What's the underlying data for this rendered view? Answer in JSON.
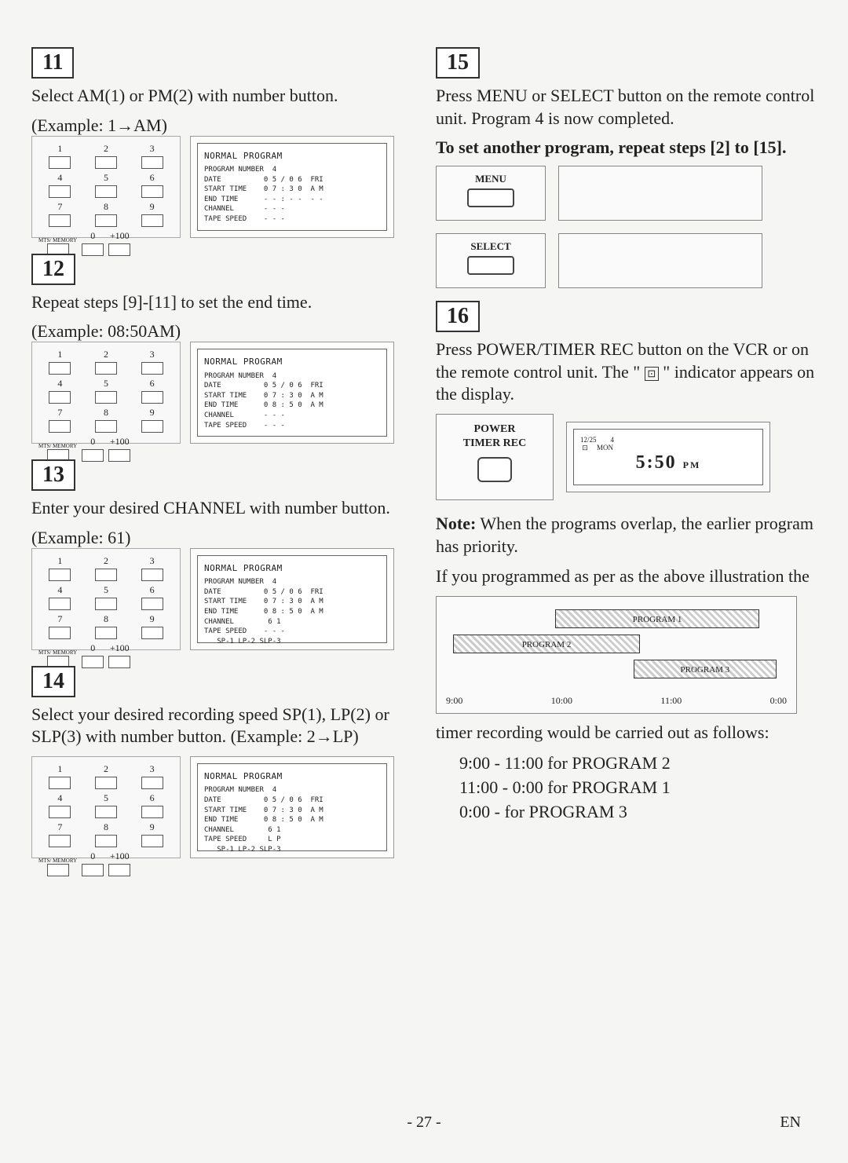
{
  "steps": {
    "s11": {
      "num": "11",
      "text": "Select AM(1) or PM(2) with number button.",
      "example": "(Example: 1→AM)"
    },
    "s12": {
      "num": "12",
      "text": "Repeat steps [9]-[11] to set the end time.",
      "example": "(Example: 08:50AM)"
    },
    "s13": {
      "num": "13",
      "text": "Enter your desired CHANNEL with number button.",
      "example": "(Example: 61)"
    },
    "s14": {
      "num": "14",
      "text": "Select your desired recording speed SP(1), LP(2) or SLP(3) with number button. (Example: 2→LP)"
    },
    "s15": {
      "num": "15",
      "text": "Press MENU or SELECT button on the remote control unit. Program 4 is now completed.",
      "bold": "To set another program, repeat steps [2] to [15]."
    },
    "s16": {
      "num": "16",
      "text_before": "Press POWER/TIMER REC button on the VCR or on the remote control unit. The \" ",
      "text_after": " \" indicator appears on the display."
    }
  },
  "keypad": {
    "nums": [
      "1",
      "2",
      "3",
      "4",
      "5",
      "6",
      "7",
      "8",
      "9"
    ],
    "bottom_left": "MTS/\nMEMORY",
    "bottom_mid": "0",
    "bottom_right": "+100"
  },
  "osd": {
    "title": "NORMAL PROGRAM",
    "subtitle": "PROGRAM NUMBER  4",
    "s11": {
      "l1": "DATE          0 5 / 0 6  FRI",
      "l2": "START TIME    0 7 : 3 0  A M",
      "l3": "END TIME      - - : - -  - -",
      "l4": "CHANNEL       - - -",
      "l5": "TAPE SPEED    - - -"
    },
    "s12": {
      "l1": "DATE          0 5 / 0 6  FRI",
      "l2": "START TIME    0 7 : 3 0  A M",
      "l3": "END TIME      0 8 : 5 0  A M",
      "l4": "CHANNEL       - - -",
      "l5": "TAPE SPEED    - - -"
    },
    "s13": {
      "l1": "DATE          0 5 / 0 6  FRI",
      "l2": "START TIME    0 7 : 3 0  A M",
      "l3": "END TIME      0 8 : 5 0  A M",
      "l4": "CHANNEL        6 1",
      "l5": "TAPE SPEED    - - -",
      "l6": "   SP-1 LP-2 SLP-3"
    },
    "s14": {
      "l1": "DATE          0 5 / 0 6  FRI",
      "l2": "START TIME    0 7 : 3 0  A M",
      "l3": "END TIME      0 8 : 5 0  A M",
      "l4": "CHANNEL        6 1",
      "l5": "TAPE SPEED     L P",
      "l6": "   SP-1 LP-2 SLP-3"
    }
  },
  "remote": {
    "menu": "MENU",
    "select": "SELECT",
    "power_timer": "POWER\nTIMER REC"
  },
  "vcr_display": {
    "small": "12/25        4\n ⊡     MON",
    "time": "5:50",
    "pm": "PM"
  },
  "note": {
    "label": "Note:",
    "text": " When the programs overlap, the earlier program has priority.",
    "text2": "If you programmed as per as the above illustration the"
  },
  "chart": {
    "p1": "PROGRAM 1",
    "p2": "PROGRAM 2",
    "p3": "PROGRAM 3",
    "times": [
      "9:00",
      "10:00",
      "11:00",
      "0:00"
    ]
  },
  "result": {
    "intro": "timer recording would be carried out as follows:",
    "l1": "9:00 - 11:00 for PROGRAM 2",
    "l2": "11:00 - 0:00 for PROGRAM 1",
    "l3": "0:00 - for PROGRAM 3"
  },
  "footer": {
    "page": "- 27 -",
    "lang": "EN"
  },
  "timer_icon": "⊡"
}
